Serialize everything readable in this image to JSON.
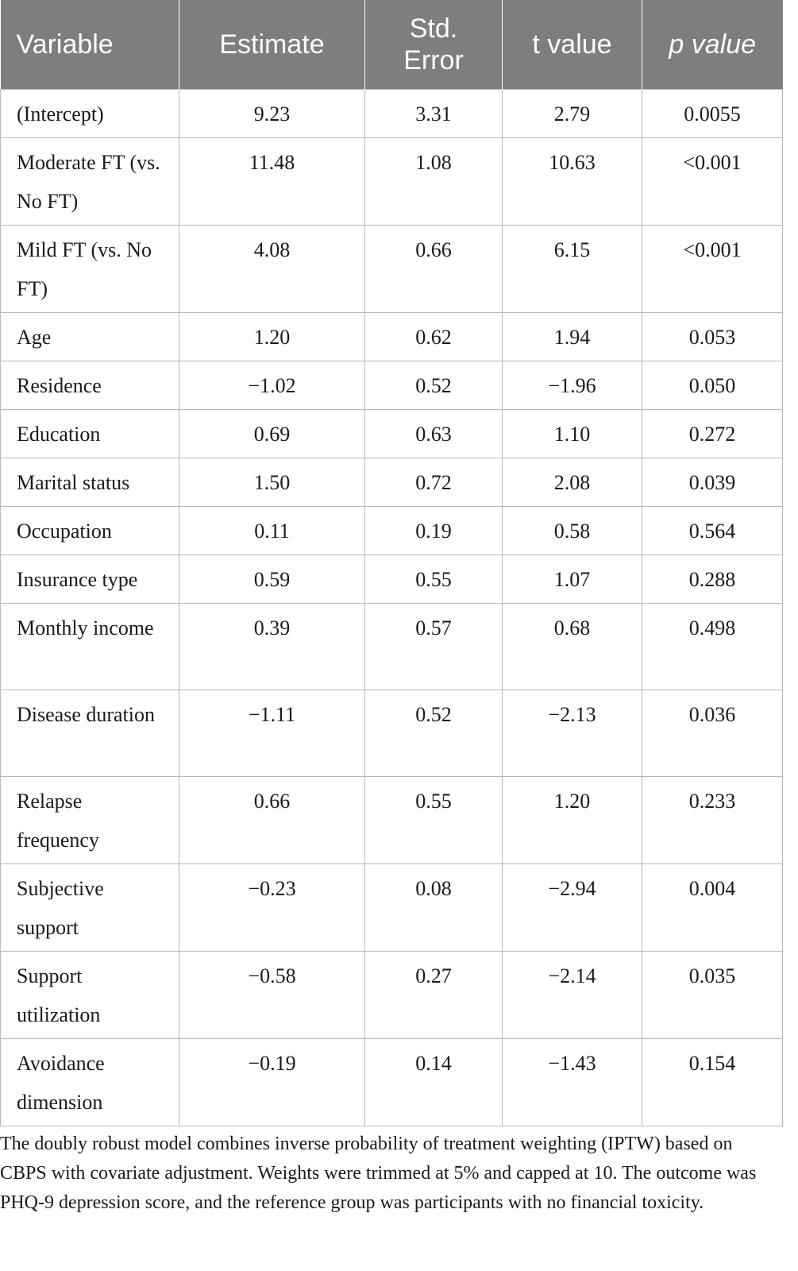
{
  "table": {
    "headers": {
      "variable": "Variable",
      "estimate": "Estimate",
      "std_error": "Std. Error",
      "t_value": "t value",
      "p_italic": "p",
      "p_rest": " value"
    },
    "rows": [
      {
        "variable": "(Intercept)",
        "estimate": "9.23",
        "std_error": "3.31",
        "t_value": "2.79",
        "p_value": "0.0055"
      },
      {
        "variable": "Moderate FT (vs. No FT)",
        "estimate": "11.48",
        "std_error": "1.08",
        "t_value": "10.63",
        "p_value": "<0.001"
      },
      {
        "variable": "Mild FT (vs. No FT)",
        "estimate": "4.08",
        "std_error": "0.66",
        "t_value": "6.15",
        "p_value": "<0.001"
      },
      {
        "variable": "Age",
        "estimate": "1.20",
        "std_error": "0.62",
        "t_value": "1.94",
        "p_value": "0.053"
      },
      {
        "variable": "Residence",
        "estimate": "−1.02",
        "std_error": "0.52",
        "t_value": "−1.96",
        "p_value": "0.050"
      },
      {
        "variable": "Education",
        "estimate": "0.69",
        "std_error": "0.63",
        "t_value": "1.10",
        "p_value": "0.272"
      },
      {
        "variable": "Marital status",
        "estimate": "1.50",
        "std_error": "0.72",
        "t_value": "2.08",
        "p_value": "0.039"
      },
      {
        "variable": "Occupation",
        "estimate": "0.11",
        "std_error": "0.19",
        "t_value": "0.58",
        "p_value": "0.564"
      },
      {
        "variable": "Insurance type",
        "estimate": "0.59",
        "std_error": "0.55",
        "t_value": "1.07",
        "p_value": "0.288"
      },
      {
        "variable": "Monthly income",
        "estimate": "0.39",
        "std_error": "0.57",
        "t_value": "0.68",
        "p_value": "0.498"
      },
      {
        "variable": "Disease duration",
        "estimate": "−1.11",
        "std_error": "0.52",
        "t_value": "−2.13",
        "p_value": "0.036"
      },
      {
        "variable": "Relapse frequency",
        "estimate": "0.66",
        "std_error": "0.55",
        "t_value": "1.20",
        "p_value": "0.233"
      },
      {
        "variable": "Subjective support",
        "estimate": "−0.23",
        "std_error": "0.08",
        "t_value": "−2.94",
        "p_value": "0.004"
      },
      {
        "variable": "Support utilization",
        "estimate": "−0.58",
        "std_error": "0.27",
        "t_value": "−2.14",
        "p_value": "0.035"
      },
      {
        "variable": "Avoidance dimension",
        "estimate": "−0.19",
        "std_error": "0.14",
        "t_value": "−1.43",
        "p_value": "0.154"
      }
    ]
  },
  "footnote": "The doubly robust model combines inverse probability of treatment weighting (IPTW) based on CBPS with covariate adjustment. Weights were trimmed at 5% and capped at 10. The outcome was PHQ-9 depression score, and the reference group was participants with no financial toxicity."
}
